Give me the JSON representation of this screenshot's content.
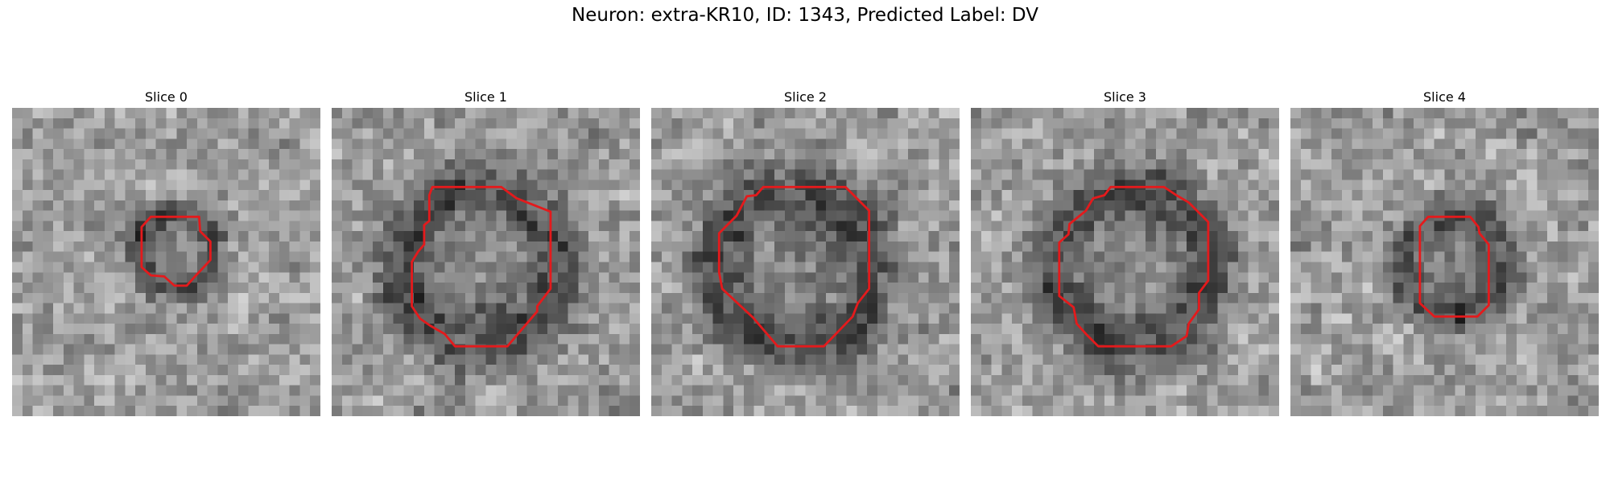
{
  "title": "Neuron: extra-KR10, ID: 1343, Predicted Label: DV",
  "panels": [
    {
      "title": "Slice 0"
    },
    {
      "title": "Slice 1"
    },
    {
      "title": "Slice 2"
    },
    {
      "title": "Slice 3"
    },
    {
      "title": "Slice 4"
    }
  ]
}
